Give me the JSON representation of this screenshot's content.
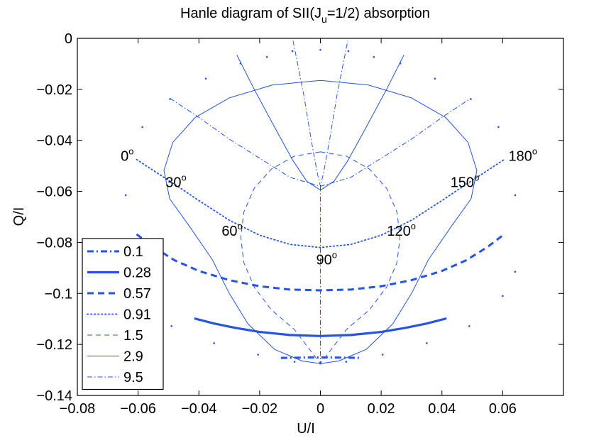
{
  "chart_data": {
    "type": "line",
    "title": {
      "prefix": "Hanle diagram of SII(J",
      "subscript": "u",
      "suffix": "=1/2) absorption"
    },
    "xlabel": "U/I",
    "ylabel": "Q/I",
    "xlim": [
      -0.08,
      0.08
    ],
    "ylim": [
      -0.14,
      0
    ],
    "xticks": [
      -0.08,
      -0.06,
      -0.04,
      -0.02,
      0,
      0.02,
      0.04,
      0.06
    ],
    "xtick_labels": [
      "−0.08",
      "−0.06",
      "−0.04",
      "−0.02",
      "0",
      "0.02",
      "0.04",
      "0.06"
    ],
    "yticks": [
      0,
      -0.02,
      -0.04,
      -0.06,
      -0.08,
      -0.1,
      -0.12,
      -0.14
    ],
    "ytick_labels": [
      "0",
      "−0.02",
      "−0.04",
      "−0.06",
      "−0.08",
      "−0.1",
      "−0.12",
      "−0.14"
    ],
    "grid": false,
    "legend_position": "bottom-left",
    "series_color": "#2453e6",
    "series": [
      {
        "name": "0.1",
        "style": "dash-dot-thick",
        "points": [
          [
            -0.013,
            -0.1253
          ],
          [
            -0.008,
            -0.1252
          ],
          [
            -0.003,
            -0.1251
          ],
          [
            0,
            -0.1251
          ],
          [
            0.003,
            -0.1251
          ],
          [
            0.008,
            -0.1252
          ],
          [
            0.013,
            -0.1253
          ]
        ]
      },
      {
        "name": "0.28",
        "style": "solid-thick",
        "points": [
          [
            -0.0415,
            -0.1098
          ],
          [
            -0.035,
            -0.1118
          ],
          [
            -0.028,
            -0.1135
          ],
          [
            -0.02,
            -0.1151
          ],
          [
            -0.01,
            -0.1163
          ],
          [
            0,
            -0.1167
          ],
          [
            0.01,
            -0.1163
          ],
          [
            0.02,
            -0.1151
          ],
          [
            0.028,
            -0.1135
          ],
          [
            0.035,
            -0.1118
          ],
          [
            0.0415,
            -0.1098
          ]
        ]
      },
      {
        "name": "0.57",
        "style": "dashed-thick",
        "points": [
          [
            -0.0605,
            -0.0768
          ],
          [
            -0.055,
            -0.0818
          ],
          [
            -0.048,
            -0.087
          ],
          [
            -0.04,
            -0.0912
          ],
          [
            -0.03,
            -0.0948
          ],
          [
            -0.02,
            -0.0972
          ],
          [
            -0.01,
            -0.0985
          ],
          [
            0,
            -0.0988
          ],
          [
            0.01,
            -0.0985
          ],
          [
            0.02,
            -0.0972
          ],
          [
            0.03,
            -0.0948
          ],
          [
            0.04,
            -0.0912
          ],
          [
            0.048,
            -0.087
          ],
          [
            0.055,
            -0.0818
          ],
          [
            0.0605,
            -0.0768
          ]
        ]
      },
      {
        "name": "0.91",
        "style": "dotted",
        "points": [
          [
            -0.0605,
            -0.0475
          ],
          [
            -0.055,
            -0.0518
          ],
          [
            -0.048,
            -0.0572
          ],
          [
            -0.04,
            -0.0636
          ],
          [
            -0.03,
            -0.0713
          ],
          [
            -0.02,
            -0.0772
          ],
          [
            -0.01,
            -0.0808
          ],
          [
            0,
            -0.082
          ],
          [
            0.01,
            -0.0808
          ],
          [
            0.02,
            -0.0772
          ],
          [
            0.03,
            -0.0713
          ],
          [
            0.04,
            -0.0636
          ],
          [
            0.048,
            -0.0572
          ],
          [
            0.055,
            -0.0518
          ],
          [
            0.0605,
            -0.0475
          ]
        ]
      },
      {
        "name": "1.5",
        "style": "dashed-thin",
        "points": [
          [
            0,
            -0.0445
          ],
          [
            0.0086,
            -0.0462
          ],
          [
            0.0161,
            -0.0512
          ],
          [
            0.0218,
            -0.0588
          ],
          [
            0.0252,
            -0.0681
          ],
          [
            0.0262,
            -0.078
          ],
          [
            0.0252,
            -0.0879
          ],
          [
            0.0218,
            -0.0975
          ],
          [
            0.0161,
            -0.1065
          ],
          [
            0.0086,
            -0.1141
          ],
          [
            0,
            -0.1275
          ],
          [
            -0.0086,
            -0.1141
          ],
          [
            -0.0161,
            -0.1065
          ],
          [
            -0.0218,
            -0.0975
          ],
          [
            -0.0252,
            -0.0879
          ],
          [
            -0.0262,
            -0.078
          ],
          [
            -0.0252,
            -0.0681
          ],
          [
            -0.0218,
            -0.0588
          ],
          [
            -0.0161,
            -0.0512
          ],
          [
            -0.0086,
            -0.0462
          ],
          [
            0,
            -0.0445
          ]
        ]
      },
      {
        "name": "2.9",
        "style": "solid-thin",
        "points": [
          [
            0,
            -0.0165
          ],
          [
            0.0158,
            -0.0183
          ],
          [
            0.0299,
            -0.0233
          ],
          [
            0.0412,
            -0.031
          ],
          [
            0.0486,
            -0.0408
          ],
          [
            0.0515,
            -0.0518
          ],
          [
            0.0496,
            -0.0629
          ],
          [
            0.0431,
            -0.0737
          ],
          [
            0.0356,
            -0.0867
          ],
          [
            0.03,
            -0.1
          ],
          [
            0.0238,
            -0.112
          ],
          [
            0.015,
            -0.122
          ],
          [
            0.006,
            -0.1265
          ],
          [
            0,
            -0.1275
          ],
          [
            -0.006,
            -0.1265
          ],
          [
            -0.015,
            -0.122
          ],
          [
            -0.0238,
            -0.112
          ],
          [
            -0.03,
            -0.1
          ],
          [
            -0.0356,
            -0.0867
          ],
          [
            -0.0431,
            -0.0737
          ],
          [
            -0.0496,
            -0.0629
          ],
          [
            -0.0515,
            -0.0518
          ],
          [
            -0.0486,
            -0.0408
          ],
          [
            -0.0412,
            -0.031
          ],
          [
            -0.0299,
            -0.0233
          ],
          [
            -0.0158,
            -0.0183
          ],
          [
            0,
            -0.0165
          ]
        ]
      },
      {
        "name": "9.5",
        "style": "dash-dot-thin",
        "points": [
          [
            0,
            -0.058
          ],
          [
            0,
            -0.1275
          ]
        ]
      }
    ],
    "extra_curves": [
      {
        "style": "solid-thin",
        "points": [
          [
            -0.0275,
            -0.0065
          ],
          [
            -0.022,
            -0.0195
          ],
          [
            -0.015,
            -0.035
          ],
          [
            -0.009,
            -0.048
          ],
          [
            -0.0045,
            -0.056
          ],
          [
            0,
            -0.0595
          ],
          [
            0.0045,
            -0.056
          ],
          [
            0.009,
            -0.048
          ],
          [
            0.015,
            -0.035
          ],
          [
            0.022,
            -0.0195
          ],
          [
            0.0275,
            -0.0065
          ]
        ]
      },
      {
        "style": "dash-dot-thin",
        "points": [
          [
            -0.009,
            -0.001
          ],
          [
            -0.0055,
            -0.022
          ],
          [
            -0.003,
            -0.04
          ],
          [
            -0.001,
            -0.053
          ],
          [
            0,
            -0.058
          ],
          [
            0.001,
            -0.053
          ],
          [
            0.003,
            -0.04
          ],
          [
            0.0055,
            -0.022
          ],
          [
            0.009,
            -0.001
          ]
        ]
      },
      {
        "style": "dash-dot-thin",
        "points": [
          [
            -0.0495,
            -0.0235
          ],
          [
            -0.04,
            -0.031
          ],
          [
            -0.03,
            -0.0395
          ],
          [
            -0.02,
            -0.047
          ],
          [
            -0.01,
            -0.0545
          ],
          [
            0,
            -0.058
          ],
          [
            0.01,
            -0.0545
          ],
          [
            0.02,
            -0.047
          ],
          [
            0.03,
            -0.0395
          ],
          [
            0.04,
            -0.031
          ],
          [
            0.0495,
            -0.0235
          ]
        ]
      },
      {
        "style": "dotted-sparse",
        "points": [
          [
            -0.0641,
            -0.0615
          ],
          [
            -0.0586,
            -0.0348
          ],
          [
            -0.0495,
            -0.0238
          ],
          [
            -0.0377,
            -0.0158
          ],
          [
            -0.0263,
            -0.0098
          ],
          [
            -0.0176,
            -0.0073
          ],
          [
            -0.0092,
            -0.005
          ],
          [
            0,
            -0.0045
          ],
          [
            0.0092,
            -0.005
          ],
          [
            0.0176,
            -0.0073
          ],
          [
            0.0263,
            -0.0098
          ],
          [
            0.0377,
            -0.0158
          ],
          [
            0.0495,
            -0.0238
          ],
          [
            0.0586,
            -0.0348
          ],
          [
            0.0641,
            -0.0615
          ],
          [
            0.0641,
            -0.0915
          ],
          [
            0.06,
            -0.101
          ],
          [
            0.049,
            -0.1128
          ],
          [
            0.035,
            -0.1195
          ],
          [
            0.0205,
            -0.124
          ],
          [
            0.0085,
            -0.1268
          ],
          [
            0,
            -0.1275
          ],
          [
            -0.0085,
            -0.1268
          ],
          [
            -0.0205,
            -0.124
          ],
          [
            -0.035,
            -0.1195
          ],
          [
            -0.049,
            -0.1128
          ],
          [
            -0.06,
            -0.101
          ],
          [
            -0.0641,
            -0.0915
          ]
        ]
      }
    ],
    "annotations": [
      {
        "text": "0",
        "sup": "o",
        "x": -0.0605,
        "y": -0.0475,
        "anchor": "end",
        "dx": -4,
        "dy": 2
      },
      {
        "text": "30",
        "sup": "o",
        "x": -0.048,
        "y": -0.0572,
        "anchor": "middle",
        "dx": 2,
        "dy": 4
      },
      {
        "text": "60",
        "sup": "o",
        "x": -0.03,
        "y": -0.0713,
        "anchor": "middle",
        "dx": 4,
        "dy": 22
      },
      {
        "text": "90",
        "sup": "o",
        "x": 0,
        "y": -0.082,
        "anchor": "start",
        "dx": -6,
        "dy": 24
      },
      {
        "text": "120",
        "sup": "o",
        "x": 0.03,
        "y": -0.0713,
        "anchor": "end",
        "dx": 6,
        "dy": 22
      },
      {
        "text": "150",
        "sup": "o",
        "x": 0.048,
        "y": -0.0572,
        "anchor": "middle",
        "dx": -2,
        "dy": 4
      },
      {
        "text": "180",
        "sup": "o",
        "x": 0.0605,
        "y": -0.0475,
        "anchor": "start",
        "dx": 6,
        "dy": 2
      }
    ]
  }
}
